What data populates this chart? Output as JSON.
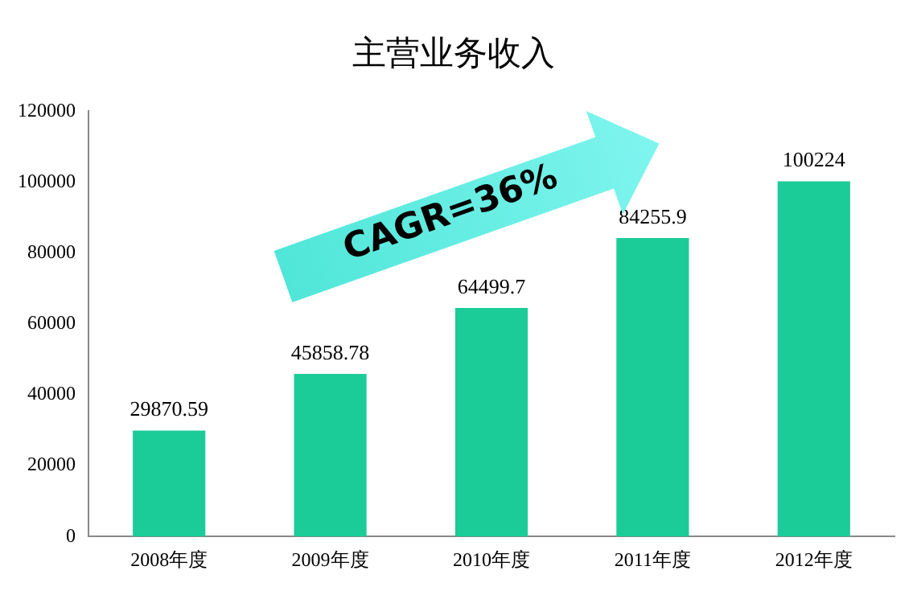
{
  "chart_data": {
    "type": "bar",
    "title": "主营业务收入",
    "categories": [
      "2008年度",
      "2009年度",
      "2010年度",
      "2011年度",
      "2012年度"
    ],
    "values": [
      29870.59,
      45858.78,
      64499.7,
      84255.9,
      100224
    ],
    "color": "#1ccc98",
    "ylim": [
      0,
      120000
    ],
    "yticks": [
      0,
      20000,
      40000,
      60000,
      80000,
      100000,
      120000
    ],
    "grid": false,
    "legend": false,
    "data_labels": true,
    "annotations": [
      "CAGR=36%"
    ]
  }
}
